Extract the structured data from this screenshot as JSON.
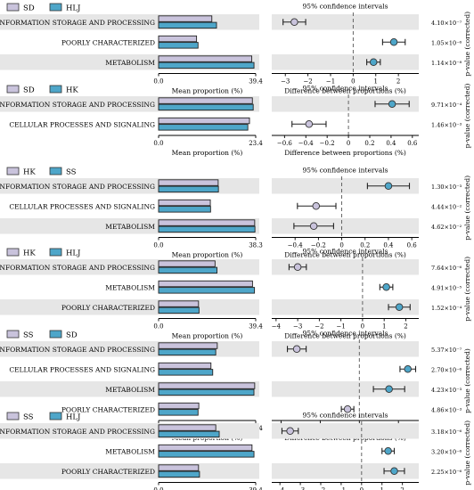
{
  "colors": {
    "lavender": "#c9c3dc",
    "teal": "#4ea6c9",
    "band": "#e6e6e6",
    "errbar": "#222222"
  },
  "common": {
    "mean_label": "Mean proportion (%)",
    "diff_label": "Difference between proportions (%)",
    "ci_label": "95% confidence intervals",
    "pval_label": "p-value (corrected)"
  },
  "chart_data": [
    {
      "type": "extended-error-bar",
      "groups": [
        {
          "name": "SD",
          "color": "#c9c3dc"
        },
        {
          "name": "HLJ",
          "color": "#4ea6c9"
        }
      ],
      "mean_axis_ticks": [
        "0.0",
        "39.4"
      ],
      "mean_max": 39.4,
      "diff_xlim": [
        -3.6,
        2.9
      ],
      "diff_ticks": [
        -3,
        -2,
        -1,
        0,
        1,
        2
      ],
      "rows": [
        {
          "label": "INFORMATION STORAGE AND PROCESSING",
          "a": 21.6,
          "b": 23.5,
          "diff": -2.6,
          "ci": [
            -3.1,
            -2.1
          ],
          "p": "4.10×10⁻⁷",
          "dot_color": "#c9c3dc"
        },
        {
          "label": "POORLY CHARACTERIZED",
          "a": 15.4,
          "b": 16.0,
          "diff": 1.8,
          "ci": [
            1.3,
            2.3
          ],
          "p": "1.05×10⁻⁶",
          "dot_color": "#4ea6c9"
        },
        {
          "label": "METABOLISM",
          "a": 37.8,
          "b": 38.7,
          "diff": 0.9,
          "ci": [
            0.6,
            1.2
          ],
          "p": "1.14×10⁻⁸",
          "dot_color": "#4ea6c9"
        }
      ]
    },
    {
      "type": "extended-error-bar",
      "groups": [
        {
          "name": "SD",
          "color": "#c9c3dc"
        },
        {
          "name": "HK",
          "color": "#4ea6c9"
        }
      ],
      "mean_axis_ticks": [
        "0.0",
        "23.4"
      ],
      "mean_max": 23.4,
      "diff_xlim": [
        -0.72,
        0.66
      ],
      "diff_ticks": [
        -0.6,
        -0.4,
        -0.2,
        0,
        0.2,
        0.4,
        0.6
      ],
      "rows": [
        {
          "label": "INFORMATION STORAGE AND PROCESSING",
          "a": 22.6,
          "b": 22.8,
          "diff": 0.41,
          "ci": [
            0.25,
            0.57
          ],
          "p": "9.71×10⁻⁴",
          "dot_color": "#4ea6c9"
        },
        {
          "label": "CELLULAR PROCESSES AND SIGNALING",
          "a": 21.9,
          "b": 21.5,
          "diff": -0.37,
          "ci": [
            -0.53,
            -0.21
          ],
          "p": "1.46×10⁻³",
          "dot_color": "#c9c3dc"
        }
      ]
    },
    {
      "type": "extended-error-bar",
      "groups": [
        {
          "name": "HK",
          "color": "#c9c3dc"
        },
        {
          "name": "SS",
          "color": "#4ea6c9"
        }
      ],
      "mean_axis_ticks": [
        "0.0",
        "38.3"
      ],
      "mean_max": 38.3,
      "diff_xlim": [
        -0.6,
        0.66
      ],
      "diff_ticks": [
        -0.4,
        -0.2,
        0,
        0.2,
        0.4,
        0.6
      ],
      "rows": [
        {
          "label": "INFORMATION STORAGE AND PROCESSING",
          "a": 23.5,
          "b": 23.6,
          "diff": 0.4,
          "ci": [
            0.22,
            0.58
          ],
          "p": "1.30×10⁻³",
          "dot_color": "#4ea6c9"
        },
        {
          "label": "CELLULAR PROCESSES AND SIGNALING",
          "a": 20.4,
          "b": 20.5,
          "diff": -0.22,
          "ci": [
            -0.38,
            -0.05
          ],
          "p": "4.44×10⁻²",
          "dot_color": "#c9c3dc"
        },
        {
          "label": "METABOLISM",
          "a": 37.9,
          "b": 38.0,
          "diff": -0.24,
          "ci": [
            -0.41,
            -0.07
          ],
          "p": "4.62×10⁻²",
          "dot_color": "#c9c3dc"
        }
      ]
    },
    {
      "type": "extended-error-bar",
      "groups": [
        {
          "name": "HK",
          "color": "#c9c3dc"
        },
        {
          "name": "HLJ",
          "color": "#4ea6c9"
        }
      ],
      "mean_axis_ticks": [
        "0.0",
        "39.4"
      ],
      "mean_max": 39.4,
      "diff_xlim": [
        -4.2,
        2.6
      ],
      "diff_ticks": [
        -4,
        -3,
        -2,
        -1,
        0,
        1,
        2
      ],
      "rows": [
        {
          "label": "INFORMATION STORAGE AND PROCESSING",
          "a": 22.9,
          "b": 23.7,
          "diff": -3.0,
          "ci": [
            -3.4,
            -2.6
          ],
          "p": "7.64×10⁻⁶",
          "dot_color": "#c9c3dc"
        },
        {
          "label": "METABOLISM",
          "a": 38.1,
          "b": 38.9,
          "diff": 1.1,
          "ci": [
            0.8,
            1.4
          ],
          "p": "4.91×10⁻⁵",
          "dot_color": "#4ea6c9"
        },
        {
          "label": "POORLY CHARACTERIZED",
          "a": 16.2,
          "b": 16.4,
          "diff": 1.7,
          "ci": [
            1.2,
            2.2
          ],
          "p": "1.52×10⁻⁴",
          "dot_color": "#4ea6c9"
        }
      ]
    },
    {
      "type": "extended-error-bar",
      "groups": [
        {
          "name": "SS",
          "color": "#c9c3dc"
        },
        {
          "name": "SD",
          "color": "#4ea6c9"
        }
      ],
      "mean_axis_ticks": [
        "0.0",
        "38.4"
      ],
      "mean_max": 38.4,
      "diff_xlim": [
        -1.12,
        0.76
      ],
      "diff_ticks": [
        -1.0,
        -0.5,
        0,
        0.5
      ],
      "rows": [
        {
          "label": "INFORMATION STORAGE AND PROCESSING",
          "a": 23.2,
          "b": 22.6,
          "diff": -0.8,
          "ci": [
            -0.92,
            -0.68
          ],
          "p": "5.37×10⁻⁷",
          "dot_color": "#c9c3dc"
        },
        {
          "label": "CELLULAR PROCESSES AND SIGNALING",
          "a": 20.7,
          "b": 21.4,
          "diff": 0.62,
          "ci": [
            0.52,
            0.72
          ],
          "p": "2.70×10⁻⁶",
          "dot_color": "#4ea6c9"
        },
        {
          "label": "METABOLISM",
          "a": 38.0,
          "b": 37.7,
          "diff": 0.38,
          "ci": [
            0.18,
            0.58
          ],
          "p": "4.23×10⁻³",
          "dot_color": "#4ea6c9"
        },
        {
          "label": "POORLY CHARACTERIZED",
          "a": 15.9,
          "b": 15.6,
          "diff": -0.15,
          "ci": [
            -0.23,
            -0.07
          ],
          "p": "4.86×10⁻³",
          "dot_color": "#c9c3dc"
        }
      ]
    },
    {
      "type": "extended-error-bar",
      "groups": [
        {
          "name": "SS",
          "color": "#c9c3dc"
        },
        {
          "name": "HLJ",
          "color": "#4ea6c9"
        }
      ],
      "mean_axis_ticks": [
        "0.0",
        "39.4"
      ],
      "mean_max": 39.4,
      "diff_xlim": [
        -4.4,
        2.8
      ],
      "diff_ticks": [
        -4,
        -3,
        -2,
        -1,
        0,
        1,
        2
      ],
      "rows": [
        {
          "label": "INFORMATION STORAGE AND PROCESSING",
          "a": 23.2,
          "b": 24.6,
          "diff": -3.5,
          "ci": [
            -3.9,
            -3.1
          ],
          "p": "3.18×10⁻⁶",
          "dot_color": "#c9c3dc"
        },
        {
          "label": "METABOLISM",
          "a": 37.9,
          "b": 38.7,
          "diff": 1.3,
          "ci": [
            1.0,
            1.6
          ],
          "p": "3.20×10⁻⁶",
          "dot_color": "#4ea6c9"
        },
        {
          "label": "POORLY CHARACTERIZED",
          "a": 16.2,
          "b": 16.6,
          "diff": 1.6,
          "ci": [
            1.1,
            2.1
          ],
          "p": "2.25×10⁻⁶",
          "dot_color": "#4ea6c9"
        }
      ]
    }
  ]
}
